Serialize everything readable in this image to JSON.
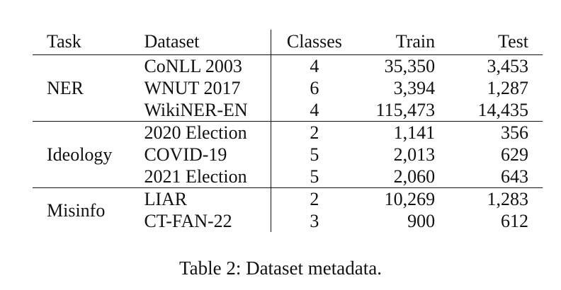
{
  "table": {
    "headers": {
      "task": "Task",
      "dataset": "Dataset",
      "classes": "Classes",
      "train": "Train",
      "test": "Test"
    },
    "groups": [
      {
        "task": "NER",
        "rows": [
          {
            "dataset": "CoNLL 2003",
            "classes": "4",
            "train": "35,350",
            "test": "3,453"
          },
          {
            "dataset": "WNUT 2017",
            "classes": "6",
            "train": "3,394",
            "test": "1,287"
          },
          {
            "dataset": "WikiNER-EN",
            "classes": "4",
            "train": "115,473",
            "test": "14,435"
          }
        ]
      },
      {
        "task": "Ideology",
        "rows": [
          {
            "dataset": "2020 Election",
            "classes": "2",
            "train": "1,141",
            "test": "356"
          },
          {
            "dataset": "COVID-19",
            "classes": "5",
            "train": "2,013",
            "test": "629"
          },
          {
            "dataset": "2021 Election",
            "classes": "5",
            "train": "2,060",
            "test": "643"
          }
        ]
      },
      {
        "task": "Misinfo",
        "rows": [
          {
            "dataset": "LIAR",
            "classes": "2",
            "train": "10,269",
            "test": "1,283"
          },
          {
            "dataset": "CT-FAN-22",
            "classes": "3",
            "train": "900",
            "test": "612"
          }
        ]
      }
    ]
  },
  "caption": "Table 2: Dataset metadata."
}
